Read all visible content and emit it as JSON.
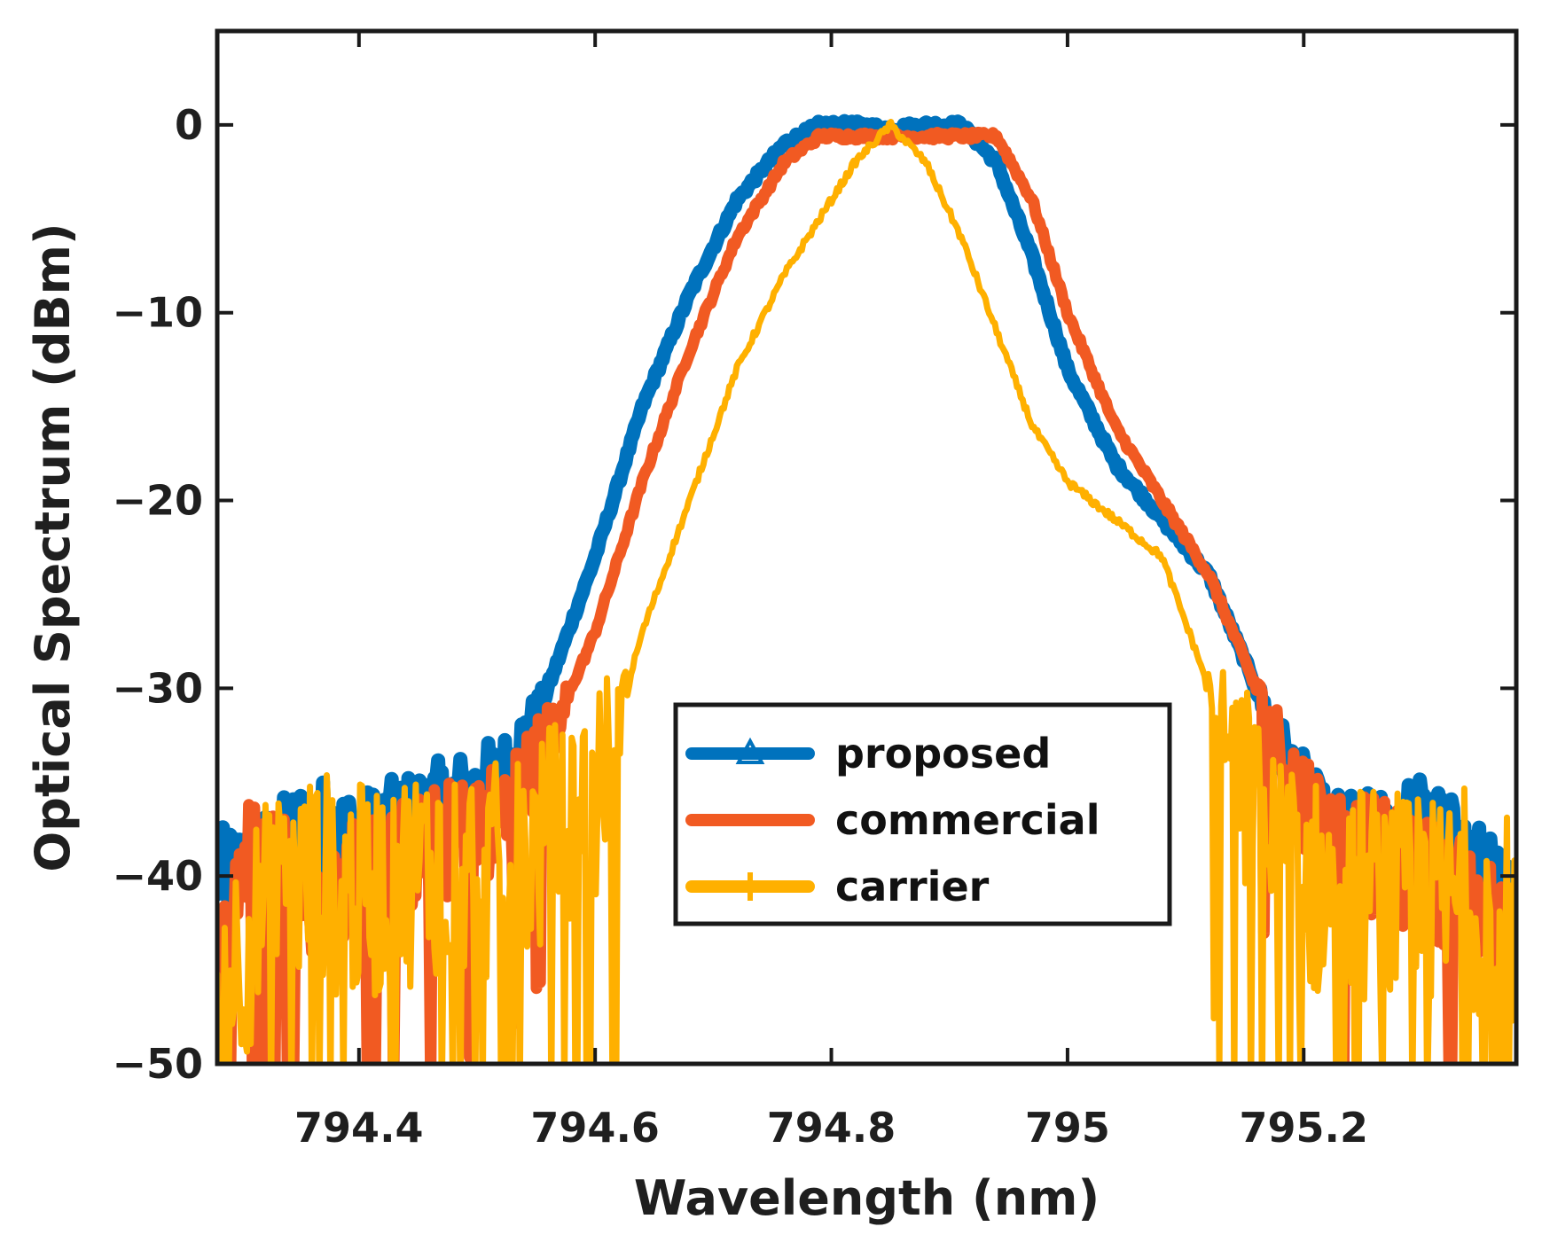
{
  "chart_data": {
    "type": "line",
    "title": "",
    "xlabel": "Wavelength (nm)",
    "ylabel": "Optical Spectrum (dBm)",
    "xlim": [
      794.28,
      795.38
    ],
    "ylim": [
      -50,
      5
    ],
    "xticks": [
      794.4,
      794.6,
      794.8,
      795.0,
      795.2
    ],
    "xtick_labels": [
      "794.4",
      "794.6",
      "794.8",
      "795",
      "795.2"
    ],
    "yticks": [
      0,
      -10,
      -20,
      -30,
      -40,
      -50
    ],
    "ytick_labels": [
      "0",
      "−10",
      "−20",
      "−30",
      "−40",
      "−50"
    ],
    "grid": false,
    "legend_position": "lower-center",
    "series": [
      {
        "name": "proposed",
        "legend_label": "proposed",
        "color": "#0072BD",
        "marker": "triangle",
        "x": [
          794.28,
          794.32,
          794.36,
          794.4,
          794.44,
          794.48,
          794.52,
          794.56,
          794.6,
          794.64,
          794.68,
          794.72,
          794.76,
          794.79,
          794.82,
          794.85,
          794.88,
          794.91,
          794.94,
          794.97,
          795.0,
          795.04,
          795.08,
          795.12,
          795.16,
          795.19,
          795.22,
          795.26,
          795.3,
          795.34,
          795.38
        ],
        "y": [
          -40,
          -39,
          -37,
          -38,
          -37,
          -36,
          -35,
          -30,
          -23,
          -15,
          -9,
          -4,
          -1,
          0,
          0,
          -0.2,
          0,
          0,
          -2,
          -7,
          -13,
          -18,
          -21,
          -24,
          -30,
          -35,
          -38,
          -38,
          -37,
          -39,
          -42
        ]
      },
      {
        "name": "commercial",
        "legend_label": "commercial",
        "color": "#F15A22",
        "marker": "none",
        "x": [
          794.28,
          794.3,
          794.33,
          794.36,
          794.4,
          794.44,
          794.48,
          794.52,
          794.56,
          794.6,
          794.64,
          794.68,
          794.72,
          794.76,
          794.79,
          794.82,
          794.85,
          794.88,
          794.91,
          794.94,
          794.97,
          795.0,
          795.04,
          795.08,
          795.12,
          795.16,
          795.19,
          795.22,
          795.26,
          795.3,
          795.34,
          795.38
        ],
        "y": [
          -46,
          -39,
          -39,
          -41,
          -40,
          -39,
          -38,
          -37,
          -33,
          -27,
          -19,
          -12,
          -6,
          -2,
          -0.6,
          -0.6,
          -0.6,
          -0.6,
          -0.6,
          -0.6,
          -4,
          -10,
          -16,
          -20,
          -24,
          -30,
          -35,
          -38,
          -39,
          -40,
          -41,
          -44
        ]
      },
      {
        "name": "carrier",
        "legend_label": " carrier",
        "color": "#FFB000",
        "marker": "plus",
        "x": [
          794.28,
          794.32,
          794.36,
          794.4,
          794.44,
          794.48,
          794.52,
          794.56,
          794.6,
          794.64,
          794.68,
          794.72,
          794.76,
          794.79,
          794.82,
          794.85,
          794.88,
          794.91,
          794.94,
          794.97,
          795.0,
          795.04,
          795.08,
          795.12,
          795.16,
          795.19,
          795.22,
          795.26,
          795.3,
          795.34,
          795.38
        ],
        "y": [
          -46,
          -42,
          -40,
          -41,
          -40,
          -39,
          -40,
          -38,
          -36,
          -27,
          -20,
          -13,
          -8,
          -5,
          -2,
          0,
          -2,
          -6,
          -11,
          -16,
          -19,
          -21,
          -23,
          -30,
          -37,
          -40,
          -41,
          -41,
          -42,
          -41,
          -43
        ]
      }
    ]
  }
}
